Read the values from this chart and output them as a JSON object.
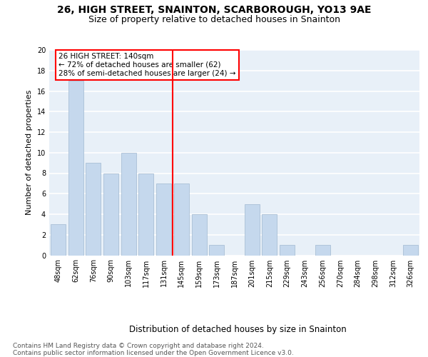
{
  "title1": "26, HIGH STREET, SNAINTON, SCARBOROUGH, YO13 9AE",
  "title2": "Size of property relative to detached houses in Snainton",
  "xlabel": "Distribution of detached houses by size in Snainton",
  "ylabel": "Number of detached properties",
  "categories": [
    "48sqm",
    "62sqm",
    "76sqm",
    "90sqm",
    "103sqm",
    "117sqm",
    "131sqm",
    "145sqm",
    "159sqm",
    "173sqm",
    "187sqm",
    "201sqm",
    "215sqm",
    "229sqm",
    "243sqm",
    "256sqm",
    "270sqm",
    "284sqm",
    "298sqm",
    "312sqm",
    "326sqm"
  ],
  "values": [
    3,
    17,
    9,
    8,
    10,
    8,
    7,
    7,
    4,
    1,
    0,
    5,
    4,
    1,
    0,
    1,
    0,
    0,
    0,
    0,
    1
  ],
  "bar_color": "#c5d8ed",
  "bar_edge_color": "#a0b8d0",
  "reference_line_x": 6.5,
  "annotation_text": "26 HIGH STREET: 140sqm\n← 72% of detached houses are smaller (62)\n28% of semi-detached houses are larger (24) →",
  "annotation_box_color": "white",
  "annotation_box_edge_color": "red",
  "ref_line_color": "red",
  "ylim": [
    0,
    20
  ],
  "yticks": [
    0,
    2,
    4,
    6,
    8,
    10,
    12,
    14,
    16,
    18,
    20
  ],
  "footnote": "Contains HM Land Registry data © Crown copyright and database right 2024.\nContains public sector information licensed under the Open Government Licence v3.0.",
  "background_color": "#e8f0f8",
  "fig_background": "white",
  "title1_fontsize": 10,
  "title2_fontsize": 9,
  "xlabel_fontsize": 8.5,
  "ylabel_fontsize": 8,
  "footnote_fontsize": 6.5,
  "annotation_fontsize": 7.5,
  "tick_fontsize": 7
}
